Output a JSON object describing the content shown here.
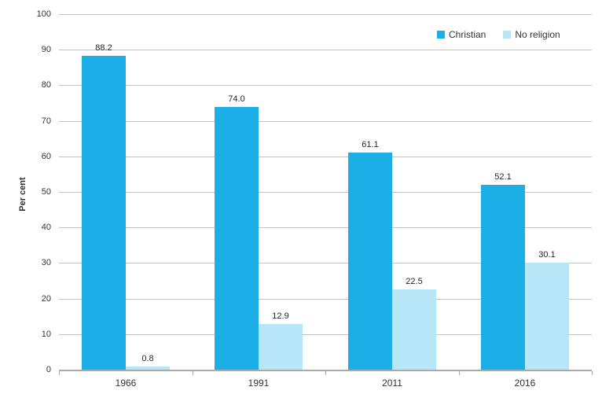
{
  "chart_data": {
    "type": "bar",
    "title": "",
    "xlabel": "",
    "ylabel": "Per cent",
    "categories": [
      "1966",
      "1991",
      "2011",
      "2016"
    ],
    "series": [
      {
        "name": "Christian",
        "color": "#1caee6",
        "values": [
          88.2,
          74.0,
          61.1,
          52.1
        ],
        "labels": [
          "88.2",
          "74.0",
          "61.1",
          "52.1"
        ]
      },
      {
        "name": "No religion",
        "color": "#b7e6f8",
        "values": [
          0.8,
          12.9,
          22.5,
          30.1
        ],
        "labels": [
          "0.8",
          "12.9",
          "22.5",
          "30.1"
        ]
      }
    ],
    "ylim": [
      0,
      100
    ],
    "ytick_step": 10,
    "grid": true,
    "legend_position": "top-right"
  },
  "style_colors": {
    "gridline": "#c3c3c3",
    "axis": "#a9a9a9",
    "text": "#333333"
  }
}
